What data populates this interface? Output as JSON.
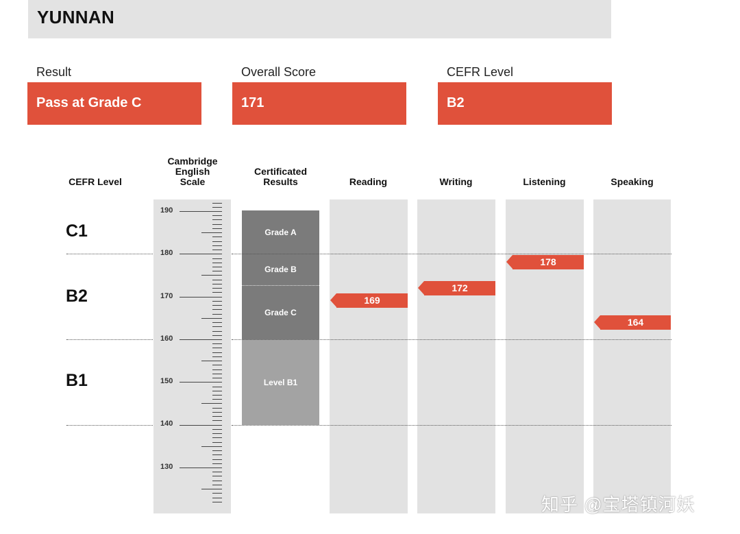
{
  "candidate": {
    "region": "YUNNAN"
  },
  "summary": [
    {
      "label": "Result",
      "value": "Pass at Grade C"
    },
    {
      "label": "Overall Score",
      "value": "171"
    },
    {
      "label": "CEFR Level",
      "value": "B2"
    }
  ],
  "columns": {
    "cefr": "CEFR Level",
    "scale": "Cambridge\nEnglish\nScale",
    "certificated": "Certificated\nResults",
    "reading": "Reading",
    "writing": "Writing",
    "listening": "Listening",
    "speaking": "Speaking"
  },
  "cefr_bands": [
    "C1",
    "B2",
    "B1"
  ],
  "scale_ticks": [
    "190",
    "180",
    "170",
    "160",
    "150",
    "140",
    "130"
  ],
  "certificated_results": [
    "Grade A",
    "Grade B",
    "Grade C",
    "Level B1"
  ],
  "scores": {
    "reading": "169",
    "writing": "172",
    "listening": "178",
    "speaking": "164"
  },
  "chart_data": {
    "type": "bar",
    "title": "",
    "xlabel": "",
    "ylabel": "Cambridge English Scale",
    "ylim": [
      122,
      192
    ],
    "categories": [
      "Reading",
      "Writing",
      "Listening",
      "Speaking"
    ],
    "values": [
      169,
      172,
      178,
      164
    ],
    "overall_score": 171,
    "cefr_bands": [
      {
        "name": "C1",
        "from": 180,
        "to": 190
      },
      {
        "name": "B2",
        "from": 160,
        "to": 180
      },
      {
        "name": "B1",
        "from": 140,
        "to": 160
      }
    ],
    "certificated_bands": [
      {
        "name": "Grade A",
        "from": 180,
        "to": 190
      },
      {
        "name": "Grade B",
        "from": 173,
        "to": 180
      },
      {
        "name": "Grade C",
        "from": 160,
        "to": 173
      },
      {
        "name": "Level B1",
        "from": 140,
        "to": 160
      }
    ]
  },
  "watermark": "知乎 @宝塔镇河妖"
}
